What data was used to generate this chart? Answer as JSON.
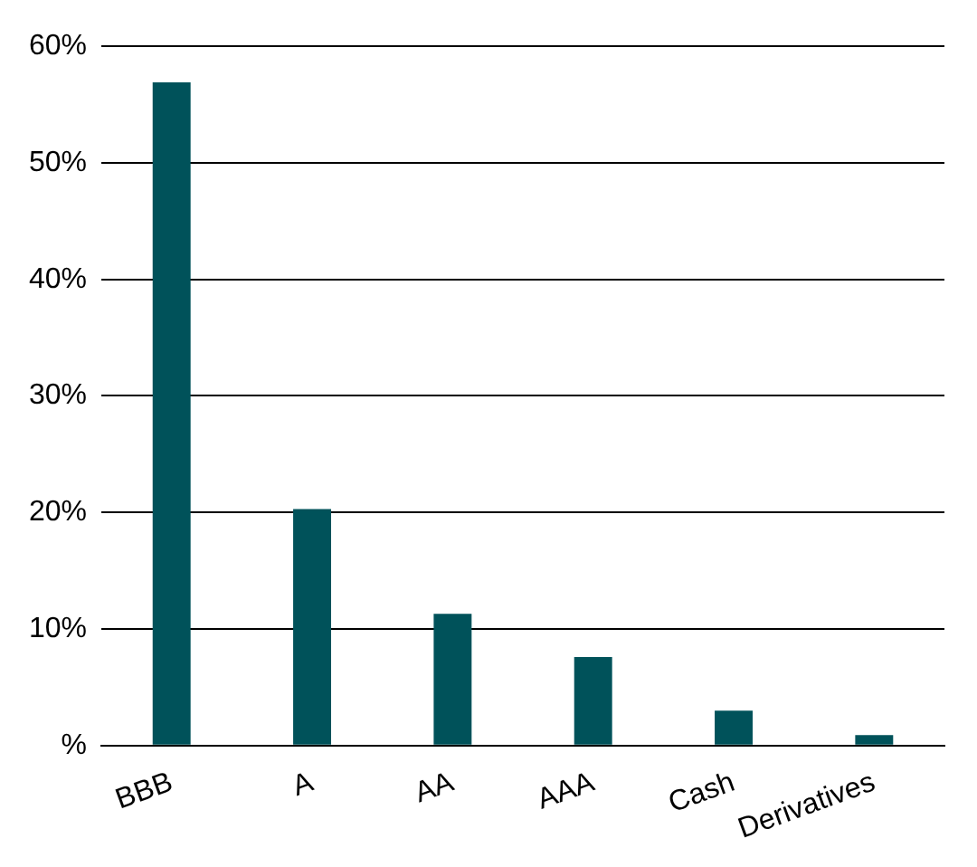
{
  "chart_data": {
    "type": "bar",
    "categories": [
      "BBB",
      "A",
      "AA",
      "AAA",
      "Cash",
      "Derivatives"
    ],
    "values": [
      56.9,
      20.3,
      11.3,
      7.6,
      3.0,
      0.9
    ],
    "color": "#00525a",
    "ylim": [
      0,
      60
    ],
    "yticks": [
      {
        "value": 0,
        "label": "%"
      },
      {
        "value": 10,
        "label": "10%"
      },
      {
        "value": 20,
        "label": "20%"
      },
      {
        "value": 30,
        "label": "30%"
      },
      {
        "value": 40,
        "label": "40%"
      },
      {
        "value": 50,
        "label": "50%"
      },
      {
        "value": 60,
        "label": "60%"
      }
    ],
    "grid": "y"
  }
}
